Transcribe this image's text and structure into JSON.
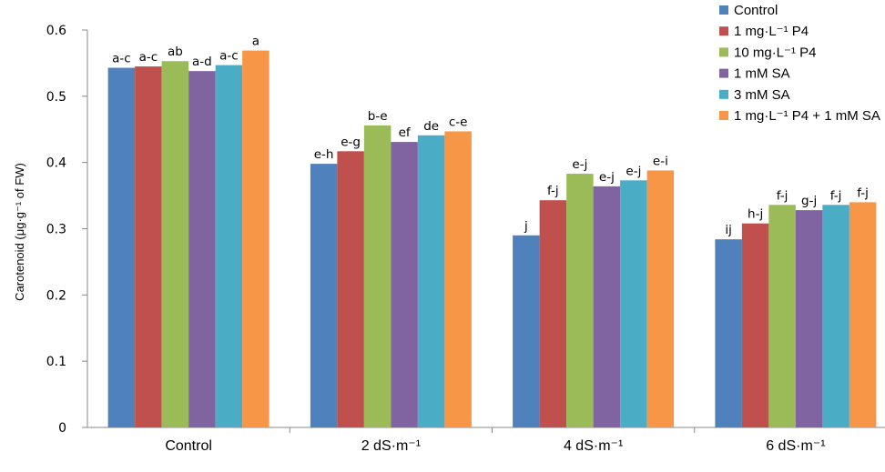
{
  "chart_data": {
    "type": "bar",
    "ylabel": "Carotenoid (μg·g⁻¹ of FW)",
    "ylim": [
      0,
      0.6
    ],
    "yticks": [
      "0",
      "0.1",
      "0.2",
      "0.3",
      "0.4",
      "0.5",
      "0.6"
    ],
    "categories": [
      "Control",
      "2 dS·m⁻¹",
      "4 dS·m⁻¹",
      "6 dS·m⁻¹"
    ],
    "legend_position": "top-right",
    "grid": false,
    "series": [
      {
        "name": "Control",
        "color": "#4F81BD",
        "values": [
          0.543,
          0.398,
          0.29,
          0.284
        ],
        "labels": [
          "a-c",
          "e-h",
          "j",
          "ij"
        ]
      },
      {
        "name": "1 mg·L⁻¹ P4",
        "color": "#C0504D",
        "values": [
          0.545,
          0.417,
          0.343,
          0.308
        ],
        "labels": [
          "a-c",
          "e-g",
          "f-j",
          "h-j"
        ]
      },
      {
        "name": "10 mg·L⁻¹ P4",
        "color": "#9BBB59",
        "values": [
          0.553,
          0.456,
          0.383,
          0.336
        ],
        "labels": [
          "ab",
          "b-e",
          "e-j",
          "f-j"
        ]
      },
      {
        "name": "1 mM SA",
        "color": "#8064A2",
        "values": [
          0.538,
          0.431,
          0.364,
          0.328
        ],
        "labels": [
          "a-d",
          "ef",
          "e-j",
          "g-j"
        ]
      },
      {
        "name": "3 mM SA",
        "color": "#4BACC6",
        "values": [
          0.547,
          0.441,
          0.373,
          0.336
        ],
        "labels": [
          "a-c",
          "de",
          "e-j",
          "f-j"
        ]
      },
      {
        "name": "1 mg·L⁻¹ P4 + 1 mM SA",
        "color": "#F79646",
        "values": [
          0.569,
          0.447,
          0.388,
          0.34
        ],
        "labels": [
          "a",
          "c-e",
          "e-i",
          "f-j"
        ]
      }
    ]
  }
}
